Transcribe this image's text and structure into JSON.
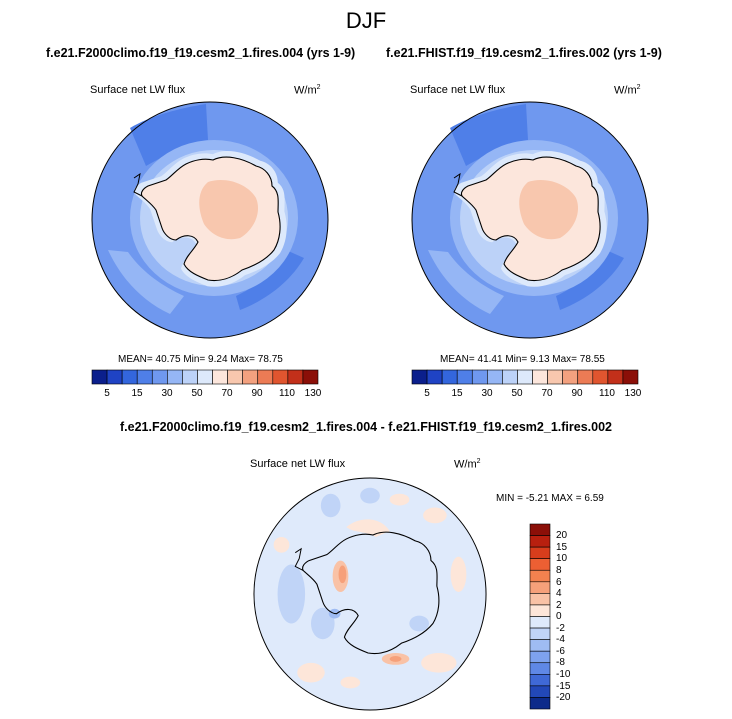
{
  "figure": {
    "season": "DJF",
    "diff_title": "f.e21.F2000climo.f19_f19.cesm2_1.fires.004 - f.e21.FHIST.f19_f19.cesm2_1.fires.002"
  },
  "panels": [
    {
      "case": "f.e21.F2000climo.f19_f19.cesm2_1.fires.004 (yrs 1-9)",
      "variable": "Surface net LW flux",
      "units": "W/m",
      "units_exp": "2",
      "stats": "MEAN=  40.75  Min=   9.24  Max=  78.75"
    },
    {
      "case": "f.e21.FHIST.f19_f19.cesm2_1.fires.002 (yrs 1-9)",
      "variable": "Surface net LW flux",
      "units": "W/m",
      "units_exp": "2",
      "stats": "MEAN=  41.41  Min=   9.13  Max=  78.55"
    }
  ],
  "diff_panel": {
    "variable": "Surface net LW flux",
    "units": "W/m",
    "units_exp": "2",
    "stats": "MIN =  -5.21 MAX =   6.59"
  },
  "colorbar": {
    "labels": [
      "5",
      "15",
      "30",
      "50",
      "70",
      "90",
      "110",
      "130"
    ],
    "colors": [
      "#0b1f8c",
      "#1f43c4",
      "#3366dd",
      "#4f7fe8",
      "#6f98ef",
      "#95b6f5",
      "#bcd2f8",
      "#dde9fb",
      "#fce6dc",
      "#f8c7ae",
      "#f3a17f",
      "#ec7b55",
      "#e0552f",
      "#c2301a",
      "#8b0f08"
    ]
  },
  "diff_colorbar": {
    "labels": [
      "20",
      "15",
      "10",
      "8",
      "6",
      "4",
      "2",
      "0",
      "-2",
      "-4",
      "-6",
      "-8",
      "-10",
      "-15",
      "-20"
    ],
    "colors": [
      "#8b0f08",
      "#b8200f",
      "#d83d1c",
      "#ec5f33",
      "#f3814f",
      "#f6a07a",
      "#f9c2a6",
      "#fde6d9",
      "#dfeafb",
      "#c0d4f7",
      "#9fbcf3",
      "#7ea2ee",
      "#5f88e6",
      "#3f69d6",
      "#2248b8",
      "#0c2a8a"
    ]
  },
  "map_colors": {
    "ocean_far": "#6f98ef",
    "ocean_dark": "#4f7fe8",
    "ocean_light": "#95b6f5",
    "coast_band": "#bcd2f8",
    "ice_edge": "#dde9fb",
    "interior": "#fce6dc",
    "plateau": "#f8c7ae",
    "diff_base": "#dfeafb",
    "diff_pos": "#fde6d9",
    "diff_pos2": "#f9c2a6",
    "diff_pos3": "#f6a07a",
    "diff_neg": "#c0d4f7",
    "diff_neg2": "#9fbcf3"
  }
}
